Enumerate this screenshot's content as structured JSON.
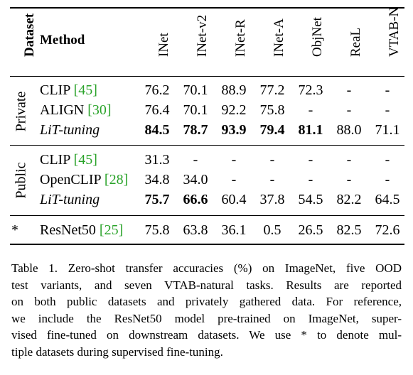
{
  "header": {
    "dataset": "Dataset",
    "method": "Method",
    "columns": [
      "INet",
      "INet-v2",
      "INet-R",
      "INet-A",
      "ObjNet",
      "ReaL",
      "VTAB-N"
    ]
  },
  "groups": [
    {
      "label": "Private",
      "rows": [
        {
          "method": "CLIP",
          "cite": "45",
          "values": [
            "76.2",
            "70.1",
            "88.9",
            "77.2",
            "72.3",
            "-",
            "-"
          ],
          "bold": [
            false,
            false,
            false,
            false,
            false,
            false,
            false
          ]
        },
        {
          "method": "ALIGN",
          "cite": "30",
          "values": [
            "76.4",
            "70.1",
            "92.2",
            "75.8",
            "-",
            "-",
            "-"
          ],
          "bold": [
            false,
            false,
            false,
            false,
            false,
            false,
            false
          ]
        },
        {
          "method": "LiT-tuning",
          "cite": "",
          "values": [
            "84.5",
            "78.7",
            "93.9",
            "79.4",
            "81.1",
            "88.0",
            "71.1"
          ],
          "bold": [
            true,
            true,
            true,
            true,
            true,
            false,
            false
          ]
        }
      ]
    },
    {
      "label": "Public",
      "rows": [
        {
          "method": "CLIP",
          "cite": "45",
          "values": [
            "31.3",
            "-",
            "-",
            "-",
            "-",
            "-",
            "-"
          ],
          "bold": [
            false,
            false,
            false,
            false,
            false,
            false,
            false
          ]
        },
        {
          "method": "OpenCLIP",
          "cite": "28",
          "values": [
            "34.8",
            "34.0",
            "-",
            "-",
            "-",
            "-",
            "-"
          ],
          "bold": [
            false,
            false,
            false,
            false,
            false,
            false,
            false
          ]
        },
        {
          "method": "LiT-tuning",
          "cite": "",
          "values": [
            "75.7",
            "66.6",
            "60.4",
            "37.8",
            "54.5",
            "82.2",
            "64.5"
          ],
          "bold": [
            true,
            true,
            false,
            false,
            false,
            false,
            false
          ]
        }
      ]
    },
    {
      "label": "*",
      "rows": [
        {
          "method": "ResNet50",
          "cite": "25",
          "values": [
            "75.8",
            "63.8",
            "36.1",
            "0.5",
            "26.5",
            "82.5",
            "72.6"
          ],
          "bold": [
            false,
            false,
            false,
            false,
            false,
            false,
            false
          ]
        }
      ]
    }
  ],
  "caption": [
    "Table 1. Zero-shot transfer accuracies (%) on ImageNet, five OOD",
    "test variants, and seven VTAB-natural tasks. Results are reported",
    "on both public datasets and privately gathered data. For reference,",
    "we include the ResNet50 model pre-trained on ImageNet, super-",
    "vised fine-tuned on downstream datasets. We use * to denote mul-",
    "tiple datasets during supervised fine-tuning."
  ]
}
